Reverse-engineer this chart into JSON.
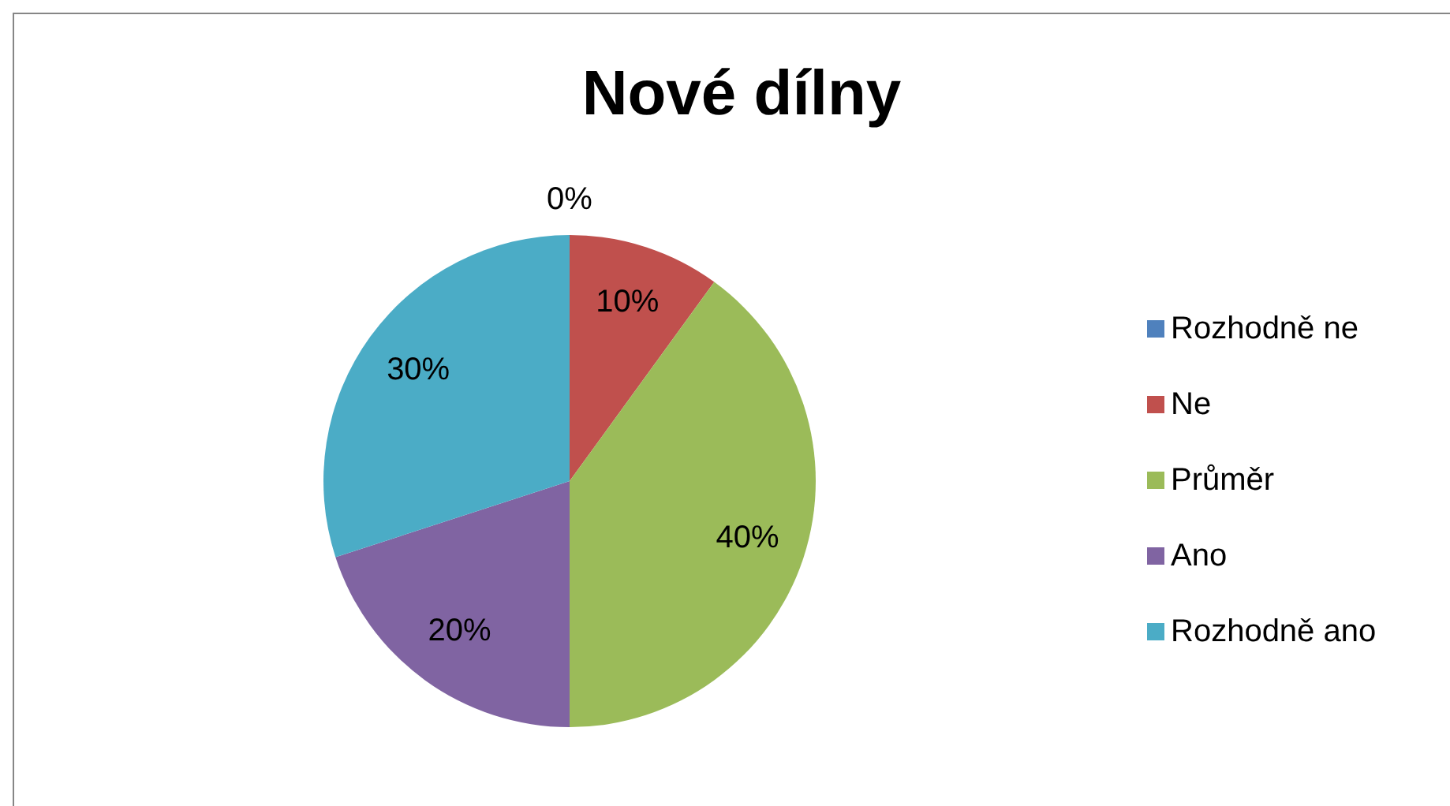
{
  "chart_data": {
    "type": "pie",
    "title": "Nové dílny",
    "categories": [
      "Rozhodně ne",
      "Ne",
      "Průměr",
      "Ano",
      "Rozhodně ano"
    ],
    "values": [
      0,
      10,
      40,
      20,
      30
    ],
    "colors": [
      "#4f81bd",
      "#c0504d",
      "#9bbb59",
      "#8064a2",
      "#4bacc6"
    ],
    "value_labels": [
      "0%",
      "10%",
      "40%",
      "20%",
      "30%"
    ],
    "legend": "right"
  }
}
